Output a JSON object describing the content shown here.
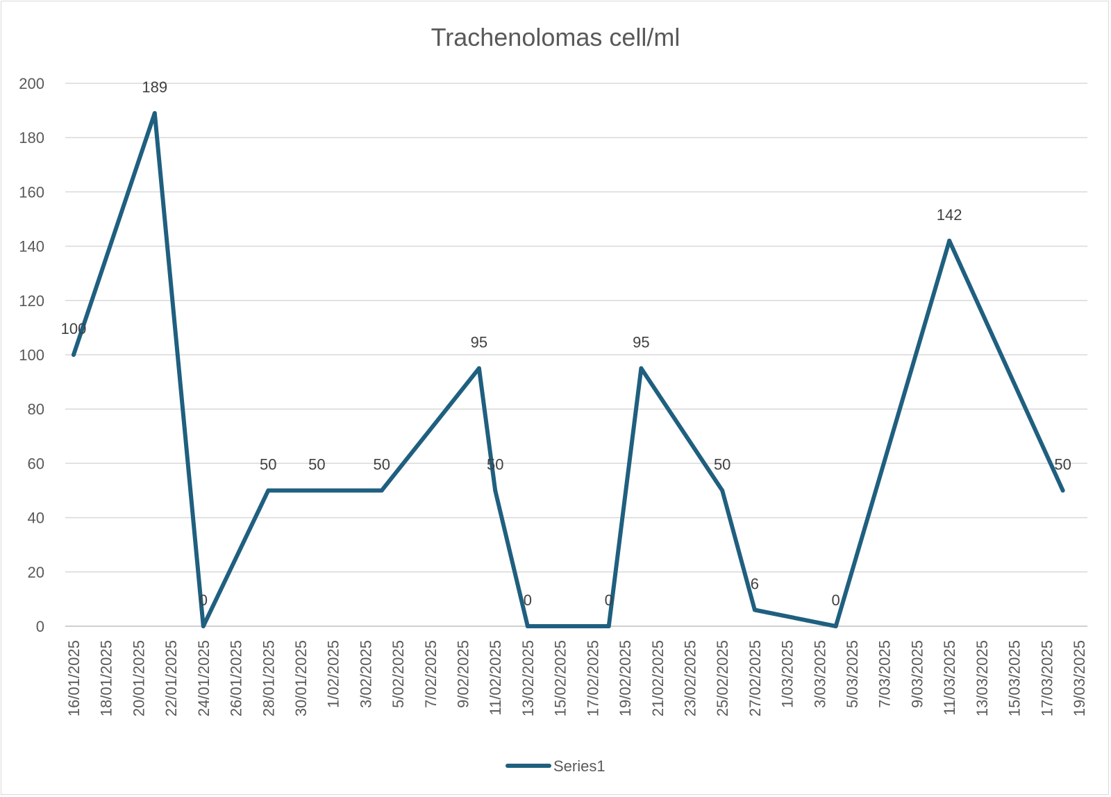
{
  "chart_data": {
    "type": "line",
    "title": "Trachenolomas cell/ml",
    "xlabel": "",
    "ylabel": "",
    "ylim": [
      0,
      200
    ],
    "ytick_step": 20,
    "x_axis_start": "16/01/2025",
    "x_axis_end": "19/03/2025",
    "x_tick_step_days": 2,
    "grid": true,
    "legend_position": "bottom",
    "line_color": "#1f5f7f",
    "series": [
      {
        "name": "Series1",
        "points": [
          {
            "date": "16/01/2025",
            "value": 100
          },
          {
            "date": "21/01/2025",
            "value": 189
          },
          {
            "date": "24/01/2025",
            "value": 0
          },
          {
            "date": "28/01/2025",
            "value": 50
          },
          {
            "date": "31/01/2025",
            "value": 50
          },
          {
            "date": "4/02/2025",
            "value": 50
          },
          {
            "date": "10/02/2025",
            "value": 95
          },
          {
            "date": "11/02/2025",
            "value": 50
          },
          {
            "date": "13/02/2025",
            "value": 0
          },
          {
            "date": "18/02/2025",
            "value": 0
          },
          {
            "date": "20/02/2025",
            "value": 95
          },
          {
            "date": "25/02/2025",
            "value": 50
          },
          {
            "date": "27/02/2025",
            "value": 6
          },
          {
            "date": "4/03/2025",
            "value": 0
          },
          {
            "date": "11/03/2025",
            "value": 142
          },
          {
            "date": "18/03/2025",
            "value": 50
          }
        ]
      }
    ]
  }
}
